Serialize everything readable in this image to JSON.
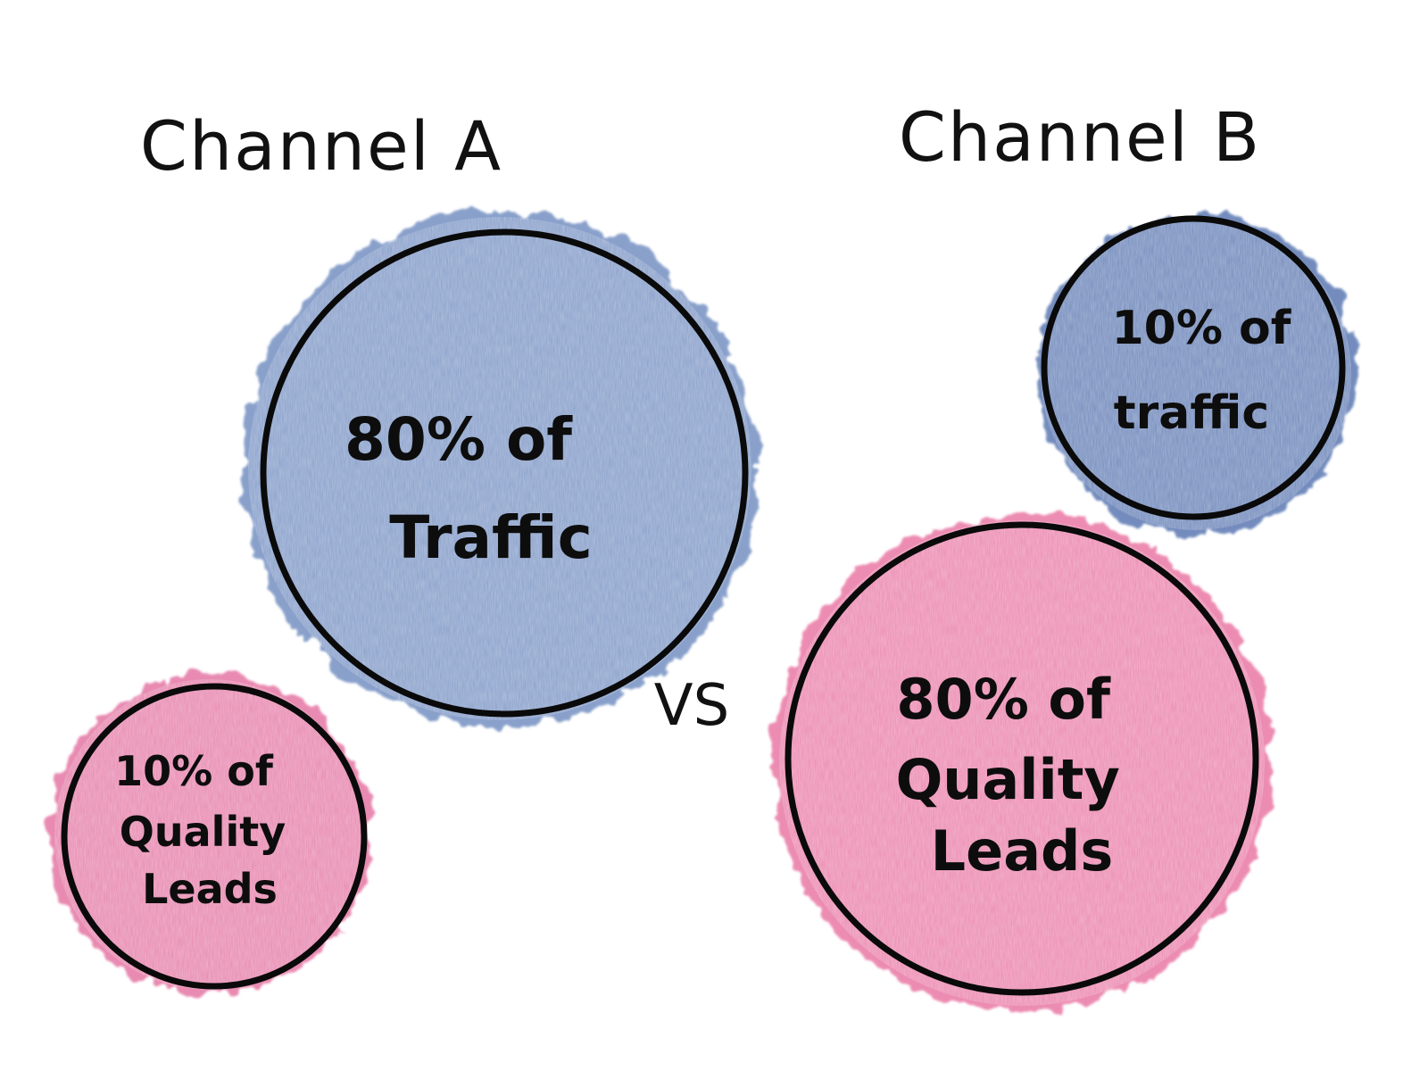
{
  "headings": {
    "channel_a": "Channel A",
    "channel_b": "Channel B"
  },
  "separator": "VS",
  "bubbles": {
    "a_traffic": {
      "lines": [
        "80% of",
        "Traffic"
      ],
      "share_percent": 80,
      "color": "#6f8cc0"
    },
    "a_leads": {
      "lines": [
        "10% of",
        "Quality",
        "Leads"
      ],
      "share_percent": 10,
      "color": "#e36d9e"
    },
    "b_traffic": {
      "lines": [
        "10% of",
        "traffic"
      ],
      "share_percent": 10,
      "color": "#5b79b2"
    },
    "b_leads": {
      "lines": [
        "80% of",
        "Quality",
        "Leads"
      ],
      "share_percent": 80,
      "color": "#e8709f"
    }
  }
}
